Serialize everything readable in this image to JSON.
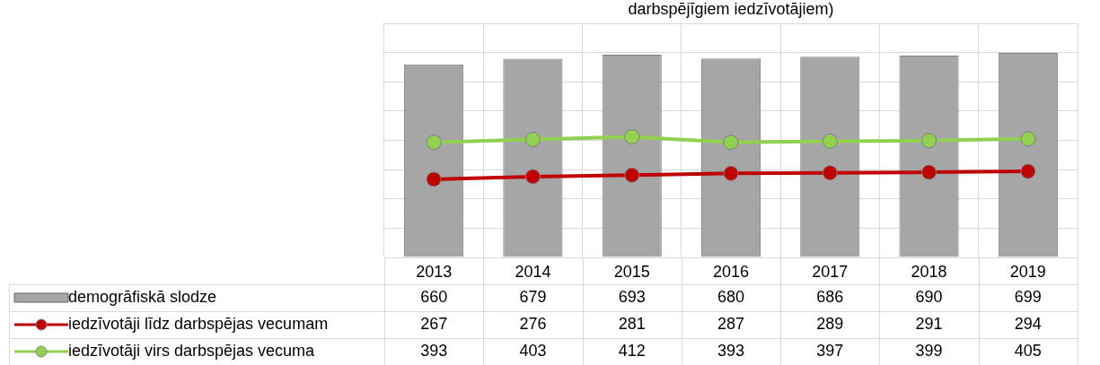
{
  "chart_data": {
    "type": "bar",
    "title": "darbspējīgiem iedzīvotājiem)",
    "categories": [
      "2013",
      "2014",
      "2015",
      "2016",
      "2017",
      "2018",
      "2019"
    ],
    "series": [
      {
        "name": "demogrāfiskā slodze",
        "color": "#a6a6a6",
        "values": [
          660,
          679,
          693,
          680,
          686,
          690,
          699
        ]
      },
      {
        "name": "iedzīvotāji līdz darbspējas vecumam",
        "type": "line",
        "color": "#c00000",
        "values": [
          267,
          276,
          281,
          287,
          289,
          291,
          294
        ]
      },
      {
        "name": "iedzīvotāji virs darbspējas vecuma",
        "type": "line",
        "color": "#92d050",
        "values": [
          393,
          403,
          412,
          393,
          397,
          399,
          405
        ]
      }
    ],
    "tick_labels": "x",
    "grid": true,
    "legend": "bottom",
    "marker": "circle",
    "data_labels": true
  }
}
